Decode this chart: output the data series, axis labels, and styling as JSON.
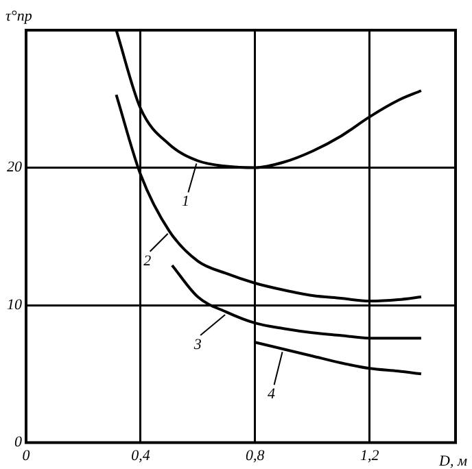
{
  "chart_data": {
    "type": "line",
    "xlabel": "D, м",
    "ylabel": "τ°пр",
    "xlim": [
      0,
      1.5
    ],
    "ylim": [
      0,
      30
    ],
    "xticks": [
      0,
      {
        "value": 0.4,
        "label": "0,4"
      },
      {
        "value": 0.8,
        "label": "0,8"
      },
      {
        "value": 1.2,
        "label": "1,2"
      }
    ],
    "yticks": [
      0,
      10,
      20
    ],
    "grid": true,
    "legend": "center",
    "marker": "none",
    "line_style": "solid",
    "series": [
      {
        "name": "1",
        "color": "#000000",
        "x": [
          0.315,
          0.4,
          0.5,
          0.6,
          0.7,
          0.8,
          0.9,
          1.0,
          1.1,
          1.2,
          1.3,
          1.38
        ],
        "values": [
          30,
          24.3,
          21.7,
          20.5,
          20.1,
          20,
          20.4,
          21.2,
          22.3,
          23.7,
          24.9,
          25.6
        ]
      },
      {
        "name": "2",
        "color": "#000000",
        "x": [
          0.315,
          0.4,
          0.5,
          0.6,
          0.7,
          0.8,
          0.9,
          1.0,
          1.1,
          1.2,
          1.3,
          1.38
        ],
        "values": [
          25.3,
          19.5,
          15.4,
          13.2,
          12.3,
          11.6,
          11.1,
          10.7,
          10.5,
          10.3,
          10.4,
          10.6
        ]
      },
      {
        "name": "3",
        "color": "#000000",
        "x": [
          0.51,
          0.6,
          0.7,
          0.8,
          0.9,
          1.0,
          1.1,
          1.2,
          1.3,
          1.38
        ],
        "values": [
          12.9,
          10.6,
          9.5,
          8.7,
          8.3,
          8.0,
          7.8,
          7.6,
          7.6,
          7.6
        ]
      },
      {
        "name": "4",
        "color": "#000000",
        "x": [
          0.8,
          0.9,
          1.0,
          1.1,
          1.2,
          1.3,
          1.38
        ],
        "values": [
          7.3,
          6.8,
          6.3,
          5.8,
          5.4,
          5.2,
          5.0
        ]
      }
    ]
  }
}
